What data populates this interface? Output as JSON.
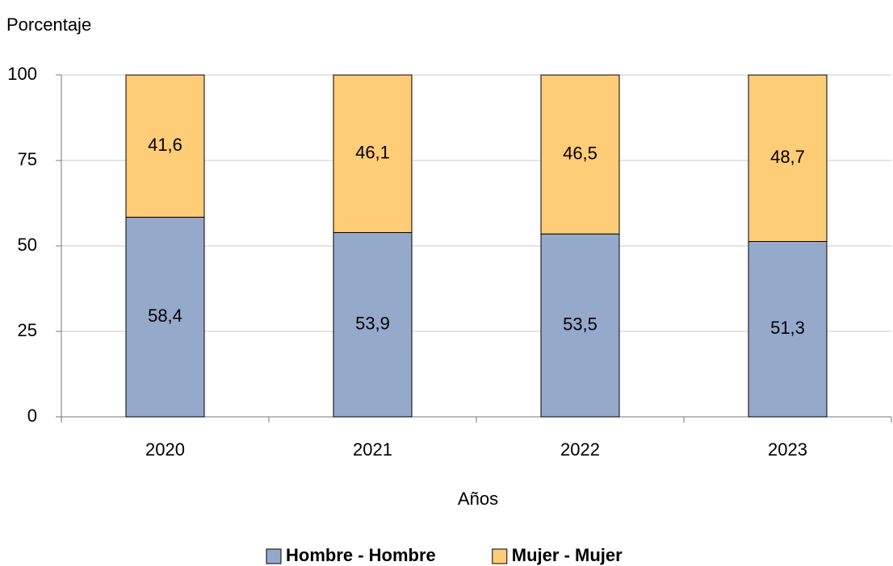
{
  "chart_data": {
    "type": "stacked_bar",
    "y_label": "Porcentaje",
    "x_label": "Años",
    "categories": [
      "2020",
      "2021",
      "2022",
      "2023"
    ],
    "series": [
      {
        "name": "Hombre - Hombre",
        "color": "#95a9cb",
        "values": [
          58.4,
          53.9,
          53.5,
          51.3
        ],
        "value_labels": [
          "58,4",
          "53,9",
          "53,5",
          "51,3"
        ]
      },
      {
        "name": "Mujer - Mujer",
        "color": "#ffcc77",
        "values": [
          41.6,
          46.1,
          46.5,
          48.7
        ],
        "value_labels": [
          "41,6",
          "46,1",
          "46,5",
          "48,7"
        ]
      }
    ],
    "ylim": [
      0,
      100
    ],
    "yticks": [
      0,
      25,
      50,
      75,
      100
    ],
    "grid": true,
    "legend": "bottom"
  }
}
